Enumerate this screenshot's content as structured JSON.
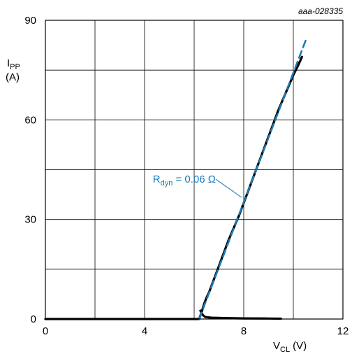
{
  "figure_id": "aaa-028335",
  "chart_data": {
    "type": "line",
    "xlabel": {
      "main": "V",
      "sub": "CL",
      "unit": "(V)"
    },
    "ylabel": {
      "main": "I",
      "sub": "PP",
      "unit": "(A)"
    },
    "xlim": [
      0,
      12
    ],
    "ylim": [
      0,
      90
    ],
    "x_ticks": [
      0,
      4,
      8,
      12
    ],
    "y_ticks": [
      0,
      30,
      60,
      90
    ],
    "x_grid": [
      0,
      2,
      4,
      6,
      8,
      10,
      12
    ],
    "y_grid": [
      0,
      15,
      30,
      45,
      60,
      75,
      90
    ],
    "grid": true,
    "series": [
      {
        "style": "solid",
        "color": "#000000",
        "x": [
          0.0,
          6.2,
          6.3,
          6.4,
          6.5,
          6.6,
          6.8,
          7.0,
          7.2,
          7.4,
          7.6,
          7.8,
          8.0,
          8.2,
          8.4,
          8.6,
          8.8,
          9.0,
          9.2,
          9.4,
          9.6,
          9.8,
          10.0,
          10.2,
          10.35
        ],
        "y": [
          0.0,
          0.0,
          2.0,
          4.5,
          6.5,
          8.0,
          12.0,
          16.0,
          20.0,
          24.0,
          27.5,
          31.0,
          35.0,
          39.0,
          43.0,
          47.0,
          51.0,
          55.0,
          59.0,
          63.0,
          66.5,
          70.0,
          73.5,
          76.5,
          79.0
        ]
      },
      {
        "style": "solid",
        "color": "#000000",
        "x": [
          6.25,
          6.35,
          6.45,
          6.7,
          7.2,
          8.0,
          9.0,
          9.5
        ],
        "y": [
          2.5,
          1.2,
          0.6,
          0.4,
          0.3,
          0.2,
          0.15,
          0.1
        ]
      },
      {
        "style": "dashed",
        "color": "#1a7ab8",
        "x": [
          6.2,
          10.5
        ],
        "y": [
          0.0,
          84.0
        ]
      }
    ],
    "annotations": [
      {
        "text_main": "R",
        "text_sub": "dyn",
        "text_rest": " = 0.06 Ω",
        "color": "#1a7ab8",
        "x": 8.0,
        "y": 36.0
      }
    ]
  }
}
